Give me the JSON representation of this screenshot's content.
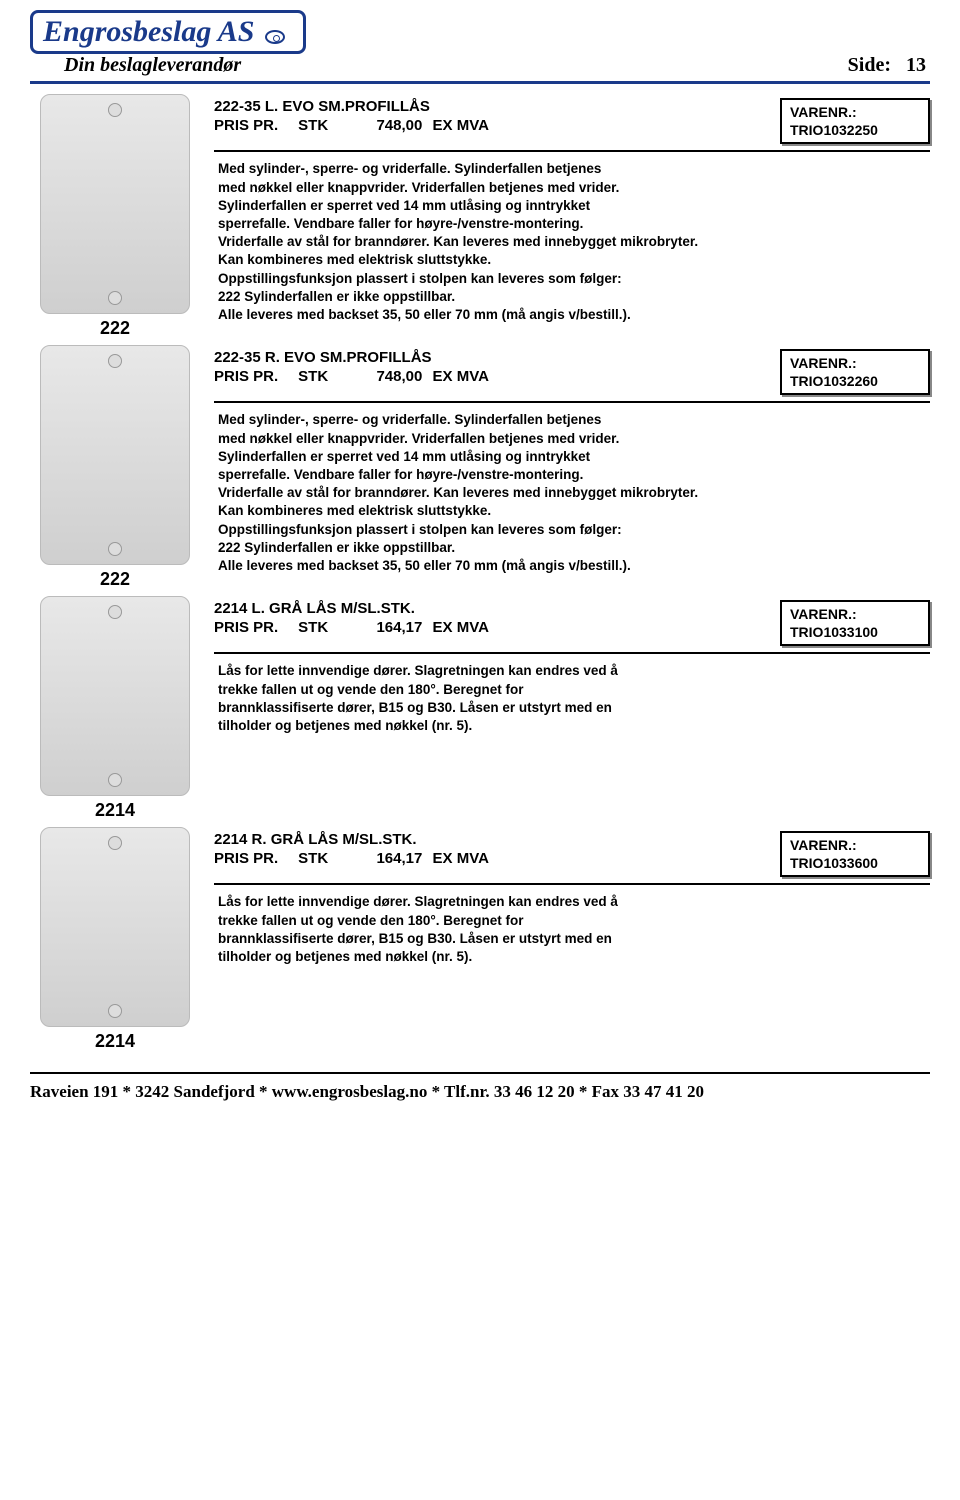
{
  "header": {
    "company": "Engrosbeslag AS",
    "tagline": "Din beslagleverandør",
    "side_label": "Side:",
    "page_number": "13"
  },
  "varenr_label": "VARENR.:",
  "price_label": "PRIS PR.",
  "unit_label": "STK",
  "ex_mva": "EX MVA",
  "products": [
    {
      "title": "222-35 L. EVO SM.PROFILLÅS",
      "price": "748,00",
      "varenr": "TRIO1032250",
      "thumb_label": "222",
      "desc": "Med sylinder-, sperre- og vriderfalle. Sylinderfallen betjenes\nmed nøkkel eller knappvrider. Vriderfallen betjenes med vrider.\nSylinderfallen er sperret ved 14 mm utlåsing og inntrykket\nsperrefalle. Vendbare faller for høyre-/venstre-montering.\nVriderfalle av stål for branndører. Kan leveres med innebygget mikrobryter.\nKan kombineres med elektrisk sluttstykke.\nOppstillingsfunksjon plassert i stolpen kan leveres som følger:\n222 Sylinderfallen er ikke oppstillbar.\nAlle leveres med backset 35, 50 eller 70 mm (må angis v/bestill.)."
    },
    {
      "title": "222-35 R. EVO SM.PROFILLÅS",
      "price": "748,00",
      "varenr": "TRIO1032260",
      "thumb_label": "222",
      "desc": "Med sylinder-, sperre- og vriderfalle. Sylinderfallen betjenes\nmed nøkkel eller knappvrider. Vriderfallen betjenes med vrider.\nSylinderfallen er sperret ved 14 mm utlåsing og inntrykket\nsperrefalle. Vendbare faller for høyre-/venstre-montering.\nVriderfalle av stål for branndører. Kan leveres med innebygget mikrobryter.\nKan kombineres med elektrisk sluttstykke.\nOppstillingsfunksjon plassert i stolpen kan leveres som følger:\n222 Sylinderfallen er ikke oppstillbar.\nAlle leveres med backset 35, 50 eller 70 mm (må angis v/bestill.)."
    },
    {
      "title": "2214 L. GRÅ LÅS M/SL.STK.",
      "price": "164,17",
      "varenr": "TRIO1033100",
      "thumb_label": "2214",
      "desc": "Lås for lette innvendige dører. Slagretningen kan endres ved å\ntrekke fallen ut og vende den 180°. Beregnet for\nbrannklassifiserte dører, B15 og B30. Låsen er utstyrt med en\ntilholder og betjenes med nøkkel (nr. 5)."
    },
    {
      "title": "2214 R. GRÅ LÅS M/SL.STK.",
      "price": "164,17",
      "varenr": "TRIO1033600",
      "thumb_label": "2214",
      "desc": "Lås for lette innvendige dører. Slagretningen kan endres ved å\ntrekke fallen ut og vende den 180°. Beregnet for\nbrannklassifiserte dører, B15 og B30. Låsen er utstyrt med en\ntilholder og betjenes med nøkkel (nr. 5)."
    }
  ],
  "footer": {
    "text": "Raveien 191  *  3242 Sandefjord  *  www.engrosbeslag.no  * Tlf.nr. 33 46 12 20 * Fax 33 47 41 20"
  }
}
